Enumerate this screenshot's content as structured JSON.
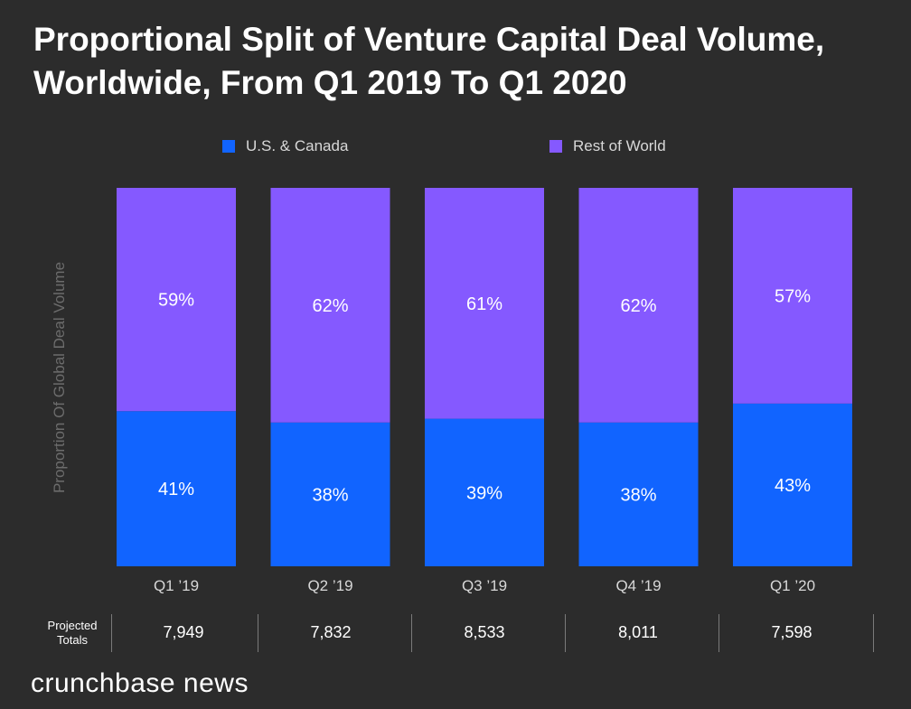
{
  "title": "Proportional Split of Venture Capital Deal Volume, Worldwide, From Q1 2019 To Q1 2020",
  "legend": [
    {
      "label": "U.S. & Canada",
      "color": "#1164ff"
    },
    {
      "label": "Rest of World",
      "color": "#8559ff"
    }
  ],
  "totals_label": "Projected Totals",
  "brand": "crunchbase news",
  "chart_data": {
    "type": "bar",
    "stacked": true,
    "title": "Proportional Split of Venture Capital Deal Volume, Worldwide, From Q1 2019 To Q1 2020",
    "xlabel": "",
    "ylabel": "Proportion Of Global Deal Volume",
    "ylim": [
      0,
      100
    ],
    "categories": [
      "Q1 ’19",
      "Q2 ’19",
      "Q3 ’19",
      "Q4 ’19",
      "Q1 ’20"
    ],
    "series": [
      {
        "name": "U.S. & Canada",
        "color": "#1164ff",
        "values": [
          41,
          38,
          39,
          38,
          43
        ],
        "labels": [
          "41%",
          "38%",
          "39%",
          "38%",
          "43%"
        ]
      },
      {
        "name": "Rest of World",
        "color": "#8559ff",
        "values": [
          59,
          62,
          61,
          62,
          57
        ],
        "labels": [
          "59%",
          "62%",
          "61%",
          "62%",
          "57%"
        ]
      }
    ],
    "projected_totals": [
      "7,949",
      "7,832",
      "8,533",
      "8,011",
      "7,598"
    ],
    "grid": false,
    "legend_position": "top"
  }
}
